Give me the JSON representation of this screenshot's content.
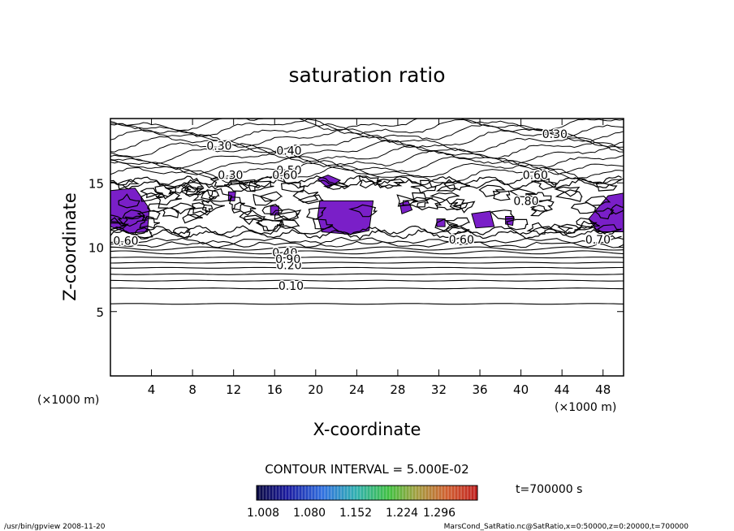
{
  "chart_data": {
    "type": "contour",
    "title": "saturation ratio",
    "xlabel": "X-coordinate",
    "ylabel": "Z-coordinate",
    "x_unit": "(×1000 m)",
    "y_unit": "(×1000 m)",
    "xlim": [
      0,
      50
    ],
    "ylim": [
      0,
      20
    ],
    "x_ticks": [
      4,
      8,
      12,
      16,
      20,
      24,
      28,
      32,
      36,
      40,
      44,
      48
    ],
    "y_ticks": [
      5,
      10,
      15
    ],
    "contour_interval_text": "CONTOUR INTERVAL = 5.000E-02",
    "contour_labels": [
      {
        "text": "0.10",
        "x": 17.6,
        "y": 7.0
      },
      {
        "text": "0.20",
        "x": 17.4,
        "y": 8.6
      },
      {
        "text": "0.30",
        "x": 10.6,
        "y": 17.9
      },
      {
        "text": "0.30",
        "x": 43.3,
        "y": 18.8
      },
      {
        "text": "0.30",
        "x": 11.7,
        "y": 15.6
      },
      {
        "text": "0.40",
        "x": 17.4,
        "y": 17.5
      },
      {
        "text": "0.40",
        "x": 17.0,
        "y": 9.6
      },
      {
        "text": "0.50",
        "x": 17.4,
        "y": 16.0
      },
      {
        "text": "0.60",
        "x": 17.0,
        "y": 15.6
      },
      {
        "text": "0.60",
        "x": 41.4,
        "y": 15.6
      },
      {
        "text": "0.60",
        "x": 1.5,
        "y": 10.5
      },
      {
        "text": "0.60",
        "x": 34.2,
        "y": 10.6
      },
      {
        "text": "0.70",
        "x": 47.5,
        "y": 10.6
      },
      {
        "text": "0.80",
        "x": 40.5,
        "y": 13.6
      },
      {
        "text": "0.90",
        "x": 17.3,
        "y": 9.1
      }
    ],
    "colorbar": {
      "ticks": [
        "1.008",
        "1.080",
        "1.152",
        "1.224",
        "1.296"
      ],
      "colors": [
        "#0a0a40",
        "#1a1aa0",
        "#3070e0",
        "#30b0b0",
        "#40c040",
        "#a0a040",
        "#d06030",
        "#c02020"
      ]
    },
    "supersaturation_color": "#7a1fc8",
    "time_text": "t=700000 s"
  },
  "footer": {
    "left": "/usr/bin/gpview  2008-11-20",
    "right": "MarsCond_SatRatio.nc@SatRatio,x=0:50000,z=0:20000,t=700000"
  }
}
